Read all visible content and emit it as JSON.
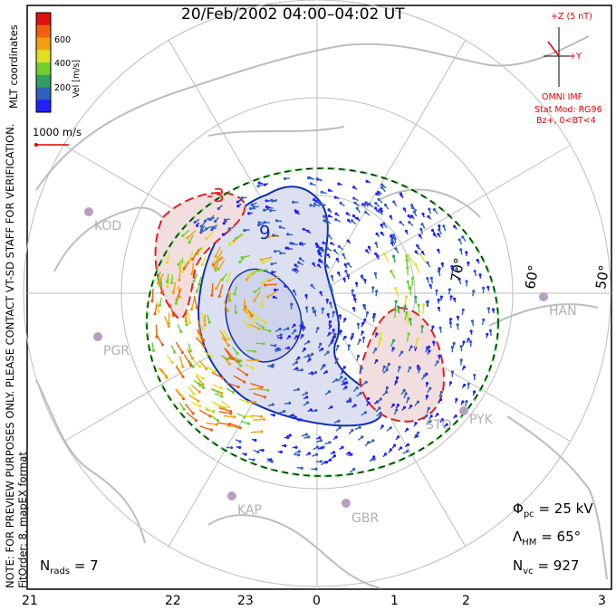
{
  "title": "20/Feb/2002 04:00–04:02 UT",
  "note_line1": "NOTE: FOR PREVIEW PURPOSES ONLY. PLEASE CONTACT VT-SD STAFF FOR VERIFICATION.",
  "note_line2": "FitOrder: 8, mapEX format",
  "coord_label": "MLT coordinates",
  "colorbar": {
    "label": "Vel [m/s]",
    "ticks": [
      "600",
      "400",
      "200"
    ],
    "colors": [
      "#e01010",
      "#f06010",
      "#f0a010",
      "#e0e020",
      "#70d030",
      "#30a060",
      "#3060c0",
      "#2020ff"
    ]
  },
  "scale_vector": "1000 m/s",
  "imf": {
    "z_label": "+Z (5 nT)",
    "y_label": "+Y",
    "source": "OMNI IMF",
    "model": "Stat Mod: RG96",
    "condition": "Bz+, 0<BT<4"
  },
  "stats": {
    "phi_sym": "Φ",
    "phi_sub": "pc",
    "phi_val": "= 25 kV",
    "lambda_sym": "Λ",
    "lambda_sub": "HM",
    "lambda_val": "= 65°",
    "nvc_sym": "N",
    "nvc_sub": "vc",
    "nvc_val": "= 927",
    "nrads_sym": "N",
    "nrads_sub": "rads",
    "nrads_val": "= 7"
  },
  "mlt_ticks": [
    "21",
    "22",
    "23",
    "0",
    "1",
    "2",
    "3"
  ],
  "lat_labels": [
    "70°",
    "60°",
    "50°"
  ],
  "sites": [
    "KOD",
    "PGR",
    "KAP",
    "GBR",
    "STO",
    "PYK",
    "HAN"
  ],
  "contours": [
    "-3",
    "9"
  ],
  "colors": {
    "negative_cell": "#f2dede",
    "positive_cell": "#dde0f0",
    "neg_line": "#e02020",
    "pos_line": "#1030b0",
    "hmb": "#40c040",
    "grid": "#bbbbbb",
    "land": "#c0c0c0"
  }
}
